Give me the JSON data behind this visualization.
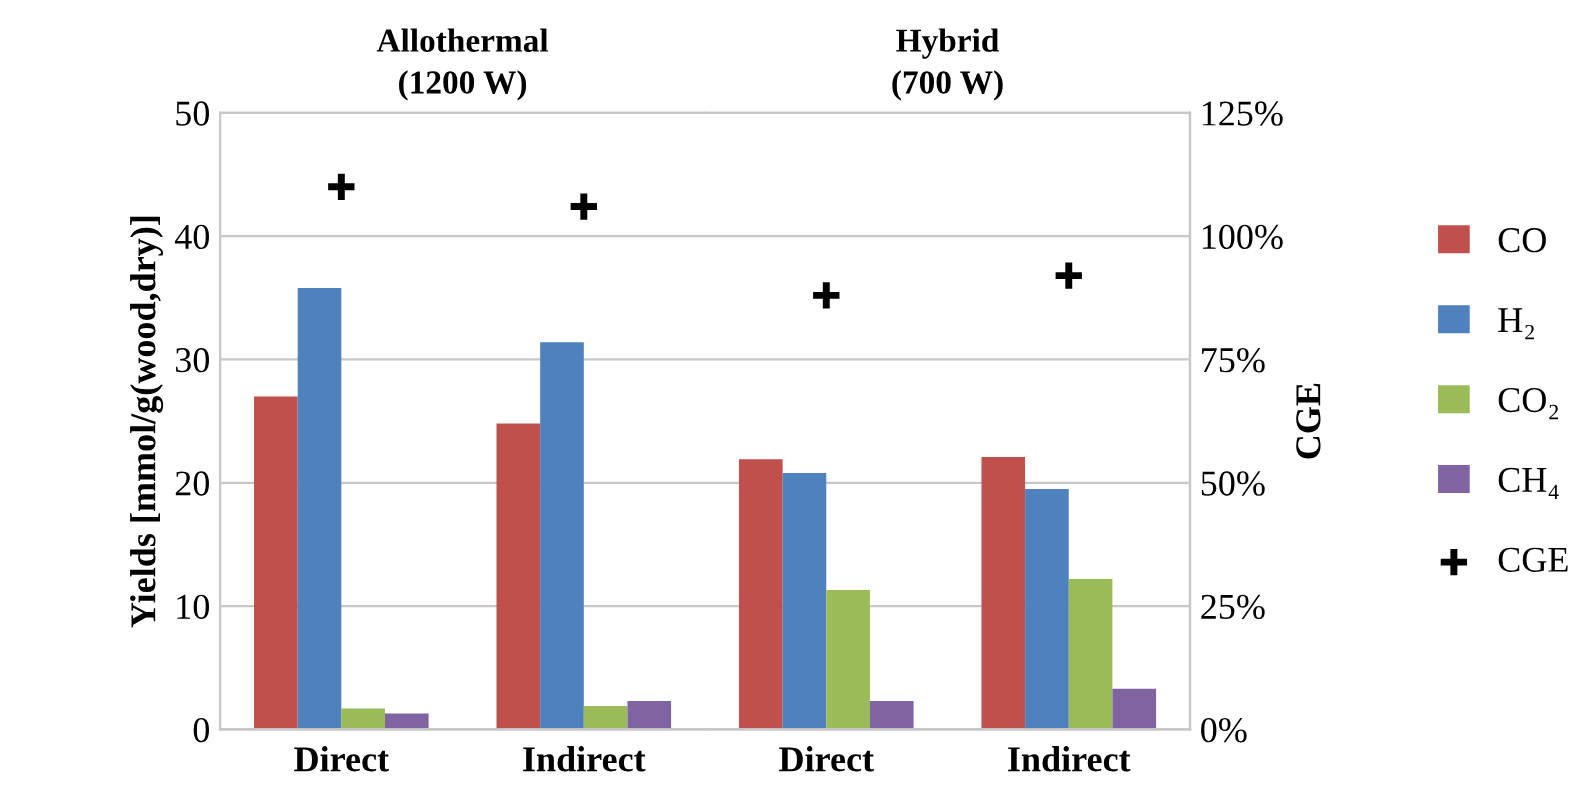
{
  "chart_data": {
    "type": "bar",
    "categories": [
      "Direct",
      "Indirect",
      "Direct",
      "Indirect"
    ],
    "series": [
      {
        "name": "CO",
        "color": "#c0504d",
        "values": [
          27,
          24.8,
          21.9,
          22.1
        ]
      },
      {
        "name": "H₂",
        "color": "#4f81bd",
        "values": [
          35.8,
          31.4,
          20.8,
          19.5
        ]
      },
      {
        "name": "CO₂",
        "color": "#9bbb59",
        "values": [
          1.7,
          1.9,
          11.3,
          12.2
        ]
      },
      {
        "name": "CH₄",
        "color": "#8064a2",
        "values": [
          1.3,
          2.3,
          2.3,
          3.3
        ]
      },
      {
        "name": "CGE",
        "type": "scatter",
        "axis": "y2",
        "color": "#000000",
        "marker": "cross",
        "values": [
          110,
          106,
          88,
          92
        ]
      }
    ],
    "ylabel": "Yields [mmol/g(wood,dry)]",
    "y2label": "CGE",
    "ylim": [
      0,
      50
    ],
    "yticks": [
      0,
      10,
      20,
      30,
      40,
      50
    ],
    "y2lim": [
      0,
      125
    ],
    "y2ticks": [
      {
        "value": 0,
        "label": "0%"
      },
      {
        "value": 25,
        "label": "25%"
      },
      {
        "value": 50,
        "label": "50%"
      },
      {
        "value": 75,
        "label": "75%"
      },
      {
        "value": 100,
        "label": "100%"
      },
      {
        "value": 125,
        "label": "125%"
      }
    ],
    "annotations": [
      "Allothermal\n(1200 W)",
      "Hybrid\n(700 W)"
    ],
    "grid": "y",
    "legend": "right"
  }
}
